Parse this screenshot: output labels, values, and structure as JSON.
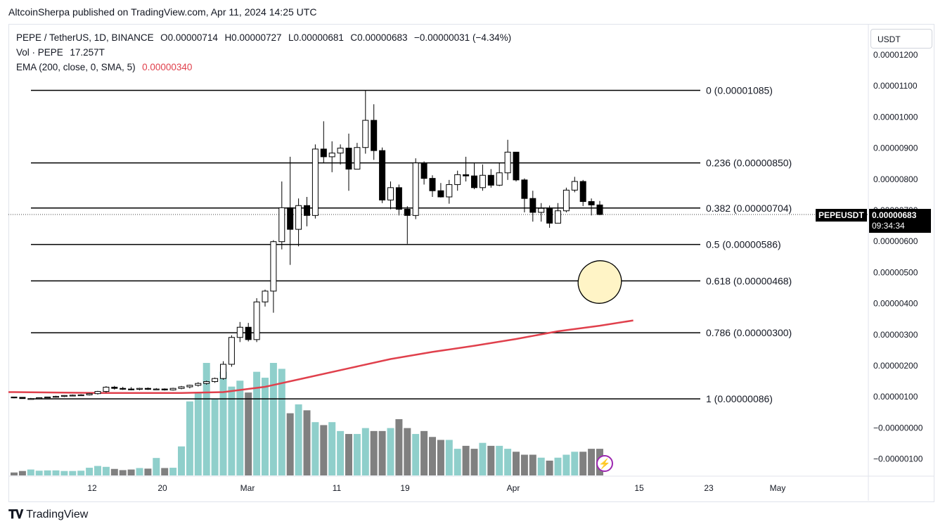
{
  "header": {
    "publisher_line": "AltcoinSherpa published on TradingView.com, Apr 11, 2024 14:25 UTC"
  },
  "legend": {
    "symbol": "PEPE / TetherUS, 1D, BINANCE",
    "open": "O0.00000714",
    "high": "H0.00000727",
    "low": "L0.00000681",
    "close": "C0.00000683",
    "change": "−0.00000031 (−4.34%)",
    "vol_label": "Vol · PEPE",
    "vol_value": "17.257T",
    "ema_label": "EMA (200, close, 0, SMA, 5)",
    "ema_value": "0.00000340"
  },
  "currency_button": "USDT",
  "ticker_label": "PEPEUSDT",
  "last_price": "0.00000683",
  "countdown": "09:34:34",
  "footer": {
    "brand_icon": "tradingview-logo-icon",
    "brand": "TradingView"
  },
  "colors": {
    "up_body": "#ffffff",
    "down_body": "#000000",
    "candle_border": "#000000",
    "vol_up": "#8fcfcb",
    "vol_down": "#808080",
    "ema": "#e0404c",
    "fib": "#000000",
    "highlight_fill": "#fff4c6"
  },
  "chart_data": {
    "type": "candlestick",
    "title": "PEPE / TetherUS, 1D, BINANCE",
    "y_ticks": [
      "0.00001200",
      "0.00001100",
      "0.00001000",
      "0.00000900",
      "0.00000800",
      "0.00000700",
      "0.00000600",
      "0.00000500",
      "0.00000400",
      "0.00000300",
      "0.00000200",
      "0.00000100",
      "−0.00000000",
      "−0.00000100"
    ],
    "x_ticks": [
      "12",
      "20",
      "Mar",
      "11",
      "19",
      "Apr",
      "15",
      "23",
      "May"
    ],
    "fib_levels": [
      {
        "ratio": "0",
        "price": 1.085e-05,
        "label": "0 (0.00001085)"
      },
      {
        "ratio": "0.236",
        "price": 8.5e-06,
        "label": "0.236 (0.00000850)"
      },
      {
        "ratio": "0.382",
        "price": 7.04e-06,
        "label": "0.382 (0.00000704)"
      },
      {
        "ratio": "0.5",
        "price": 5.86e-06,
        "label": "0.5 (0.00000586)"
      },
      {
        "ratio": "0.618",
        "price": 4.68e-06,
        "label": "0.618 (0.00000468)"
      },
      {
        "ratio": "0.786",
        "price": 3e-06,
        "label": "0.786 (0.00000300)"
      },
      {
        "ratio": "1",
        "price": 8.6e-07,
        "label": "1 (0.00000086)"
      }
    ],
    "candles": [
      {
        "o": 9.2e-07,
        "h": 9.2e-07,
        "l": 8.8e-07,
        "c": 9.1e-07
      },
      {
        "o": 9.1e-07,
        "h": 9.2e-07,
        "l": 8.7e-07,
        "c": 8.7e-07
      },
      {
        "o": 8.7e-07,
        "h": 8.9e-07,
        "l": 8.6e-07,
        "c": 8.7e-07
      },
      {
        "o": 8.7e-07,
        "h": 9.1e-07,
        "l": 8.6e-07,
        "c": 9e-07
      },
      {
        "o": 9e-07,
        "h": 9.3e-07,
        "l": 8.9e-07,
        "c": 9.2e-07
      },
      {
        "o": 9.2e-07,
        "h": 9.6e-07,
        "l": 9e-07,
        "c": 9.4e-07
      },
      {
        "o": 9.4e-07,
        "h": 9.8e-07,
        "l": 9.2e-07,
        "c": 9.7e-07
      },
      {
        "o": 9.7e-07,
        "h": 1e-06,
        "l": 9.5e-07,
        "c": 9.8e-07
      },
      {
        "o": 9.8e-07,
        "h": 1.01e-06,
        "l": 9.6e-07,
        "c": 9.9e-07
      },
      {
        "o": 9.9e-07,
        "h": 1.05e-06,
        "l": 9.7e-07,
        "c": 1.03e-06
      },
      {
        "o": 1.03e-06,
        "h": 1.12e-06,
        "l": 1e-06,
        "c": 1.1e-06
      },
      {
        "o": 1.1e-06,
        "h": 1.27e-06,
        "l": 1.06e-06,
        "c": 1.24e-06
      },
      {
        "o": 1.24e-06,
        "h": 1.28e-06,
        "l": 1.16e-06,
        "c": 1.2e-06
      },
      {
        "o": 1.2e-06,
        "h": 1.25e-06,
        "l": 1.15e-06,
        "c": 1.18e-06
      },
      {
        "o": 1.18e-06,
        "h": 1.24e-06,
        "l": 1.14e-06,
        "c": 1.17e-06
      },
      {
        "o": 1.17e-06,
        "h": 1.22e-06,
        "l": 1.14e-06,
        "c": 1.2e-06
      },
      {
        "o": 1.2e-06,
        "h": 1.23e-06,
        "l": 1.15e-06,
        "c": 1.17e-06
      },
      {
        "o": 1.17e-06,
        "h": 1.21e-06,
        "l": 1.15e-06,
        "c": 1.18e-06
      },
      {
        "o": 1.18e-06,
        "h": 1.2e-06,
        "l": 1.13e-06,
        "c": 1.15e-06
      },
      {
        "o": 1.15e-06,
        "h": 1.22e-06,
        "l": 1.13e-06,
        "c": 1.2e-06
      },
      {
        "o": 1.2e-06,
        "h": 1.28e-06,
        "l": 1.17e-06,
        "c": 1.25e-06
      },
      {
        "o": 1.25e-06,
        "h": 1.32e-06,
        "l": 1.2e-06,
        "c": 1.3e-06
      },
      {
        "o": 1.3e-06,
        "h": 1.4e-06,
        "l": 1.26e-06,
        "c": 1.36e-06
      },
      {
        "o": 1.36e-06,
        "h": 1.45e-06,
        "l": 1.32e-06,
        "c": 1.42e-06
      },
      {
        "o": 1.42e-06,
        "h": 1.55e-06,
        "l": 1.38e-06,
        "c": 1.52e-06
      },
      {
        "o": 1.52e-06,
        "h": 2.08e-06,
        "l": 1.48e-06,
        "c": 1.98e-06
      },
      {
        "o": 1.98e-06,
        "h": 2.92e-06,
        "l": 1.9e-06,
        "c": 2.85e-06
      },
      {
        "o": 2.85e-06,
        "h": 3.35e-06,
        "l": 2.7e-06,
        "c": 3.18e-06
      },
      {
        "o": 3.18e-06,
        "h": 3.32e-06,
        "l": 2.72e-06,
        "c": 2.78e-06
      },
      {
        "o": 2.78e-06,
        "h": 4.12e-06,
        "l": 2.7e-06,
        "c": 4e-06
      },
      {
        "o": 4e-06,
        "h": 4.4e-06,
        "l": 3.85e-06,
        "c": 4.35e-06
      },
      {
        "o": 4.35e-06,
        "h": 6e-06,
        "l": 3.65e-06,
        "c": 5.95e-06
      },
      {
        "o": 5.95e-06,
        "h": 7.9e-06,
        "l": 5.7e-06,
        "c": 7.05e-06
      },
      {
        "o": 7.05e-06,
        "h": 8.7e-06,
        "l": 5.2e-06,
        "c": 6.35e-06
      },
      {
        "o": 6.35e-06,
        "h": 7.35e-06,
        "l": 5.8e-06,
        "c": 7.12e-06
      },
      {
        "o": 7.12e-06,
        "h": 7.4e-06,
        "l": 6.45e-06,
        "c": 6.8e-06
      },
      {
        "o": 6.8e-06,
        "h": 9.1e-06,
        "l": 6.7e-06,
        "c": 8.95e-06
      },
      {
        "o": 8.95e-06,
        "h": 9.85e-06,
        "l": 8.5e-06,
        "c": 8.7e-06
      },
      {
        "o": 8.7e-06,
        "h": 9.2e-06,
        "l": 8.2e-06,
        "c": 8.82e-06
      },
      {
        "o": 8.82e-06,
        "h": 9.1e-06,
        "l": 8.45e-06,
        "c": 8.98e-06
      },
      {
        "o": 8.98e-06,
        "h": 9.45e-06,
        "l": 7.6e-06,
        "c": 8.3e-06
      },
      {
        "o": 8.3e-06,
        "h": 9.15e-06,
        "l": 8.3e-06,
        "c": 9e-06
      },
      {
        "o": 9e-06,
        "h": 1.085e-05,
        "l": 8.8e-06,
        "c": 9.88e-06
      },
      {
        "o": 9.88e-06,
        "h": 1.04e-05,
        "l": 8.6e-06,
        "c": 8.9e-06
      },
      {
        "o": 8.9e-06,
        "h": 9e-06,
        "l": 7.2e-06,
        "c": 7.3e-06
      },
      {
        "o": 7.3e-06,
        "h": 7.9e-06,
        "l": 7e-06,
        "c": 7.7e-06
      },
      {
        "o": 7.7e-06,
        "h": 7.8e-06,
        "l": 6.8e-06,
        "c": 7e-06
      },
      {
        "o": 7e-06,
        "h": 7.1e-06,
        "l": 5.88e-06,
        "c": 6.8e-06
      },
      {
        "o": 6.8e-06,
        "h": 8.65e-06,
        "l": 6.68e-06,
        "c": 8.5e-06
      },
      {
        "o": 8.5e-06,
        "h": 8.55e-06,
        "l": 7.8e-06,
        "c": 8e-06
      },
      {
        "o": 8e-06,
        "h": 8.1e-06,
        "l": 7.4e-06,
        "c": 7.6e-06
      },
      {
        "o": 7.6e-06,
        "h": 7.85e-06,
        "l": 7.38e-06,
        "c": 7.4e-06
      },
      {
        "o": 7.4e-06,
        "h": 7.95e-06,
        "l": 7.18e-06,
        "c": 7.8e-06
      },
      {
        "o": 7.8e-06,
        "h": 8.25e-06,
        "l": 7.6e-06,
        "c": 8.12e-06
      },
      {
        "o": 8.12e-06,
        "h": 8.7e-06,
        "l": 7.9e-06,
        "c": 8.08e-06
      },
      {
        "o": 8.08e-06,
        "h": 8.5e-06,
        "l": 7.65e-06,
        "c": 7.7e-06
      },
      {
        "o": 7.7e-06,
        "h": 8.45e-06,
        "l": 7.6e-06,
        "c": 8.1e-06
      },
      {
        "o": 8.1e-06,
        "h": 8.3e-06,
        "l": 7.7e-06,
        "c": 7.78e-06
      },
      {
        "o": 7.78e-06,
        "h": 8.5e-06,
        "l": 7.75e-06,
        "c": 8.18e-06
      },
      {
        "o": 8.18e-06,
        "h": 9.25e-06,
        "l": 7.95e-06,
        "c": 8.85e-06
      },
      {
        "o": 8.85e-06,
        "h": 8.85e-06,
        "l": 7.9e-06,
        "c": 7.95e-06
      },
      {
        "o": 7.95e-06,
        "h": 8e-06,
        "l": 6.9e-06,
        "c": 7.35e-06
      },
      {
        "o": 7.35e-06,
        "h": 7.6e-06,
        "l": 6.6e-06,
        "c": 6.9e-06
      },
      {
        "o": 6.9e-06,
        "h": 7.2e-06,
        "l": 6.6e-06,
        "c": 7.03e-06
      },
      {
        "o": 7.03e-06,
        "h": 7.12e-06,
        "l": 6.4e-06,
        "c": 6.55e-06
      },
      {
        "o": 6.55e-06,
        "h": 7.2e-06,
        "l": 6.55e-06,
        "c": 6.95e-06
      },
      {
        "o": 6.95e-06,
        "h": 7.7e-06,
        "l": 6.9e-06,
        "c": 7.62e-06
      },
      {
        "o": 7.62e-06,
        "h": 8.05e-06,
        "l": 7.55e-06,
        "c": 7.9e-06
      },
      {
        "o": 7.9e-06,
        "h": 7.95e-06,
        "l": 7.1e-06,
        "c": 7.25e-06
      },
      {
        "o": 7.25e-06,
        "h": 7.35e-06,
        "l": 6.8e-06,
        "c": 7.14e-06
      },
      {
        "o": 7.14e-06,
        "h": 7.27e-06,
        "l": 6.81e-06,
        "c": 6.83e-06
      }
    ],
    "volume": [
      1,
      1.5,
      2,
      1.6,
      1.7,
      1.7,
      1.5,
      1.5,
      1.6,
      2.6,
      3.2,
      2.9,
      2.2,
      1.8,
      2.0,
      2.5,
      2.3,
      5.9,
      2.5,
      2.6,
      9.8,
      25,
      28,
      38,
      26,
      35,
      30,
      32,
      28,
      35,
      33,
      38,
      36,
      21,
      24,
      22,
      18,
      17,
      18,
      15,
      14,
      14,
      16,
      15,
      15,
      16,
      19,
      16,
      14,
      15,
      13,
      12,
      12,
      9,
      10,
      9,
      11,
      10,
      10,
      9,
      8,
      7,
      7,
      6,
      5,
      6,
      7,
      8,
      8,
      9,
      9
    ],
    "ema": [
      {
        "i": 0,
        "v": 1.08e-06
      },
      {
        "i": 10,
        "v": 1.05e-06
      },
      {
        "i": 20,
        "v": 1.05e-06
      },
      {
        "i": 25,
        "v": 1.08e-06
      },
      {
        "i": 30,
        "v": 1.25e-06
      },
      {
        "i": 35,
        "v": 1.55e-06
      },
      {
        "i": 40,
        "v": 1.85e-06
      },
      {
        "i": 45,
        "v": 2.15e-06
      },
      {
        "i": 50,
        "v": 2.38e-06
      },
      {
        "i": 55,
        "v": 2.58e-06
      },
      {
        "i": 60,
        "v": 2.8e-06
      },
      {
        "i": 65,
        "v": 3.05e-06
      },
      {
        "i": 70,
        "v": 3.23e-06
      },
      {
        "i": 74,
        "v": 3.4e-06
      }
    ]
  }
}
